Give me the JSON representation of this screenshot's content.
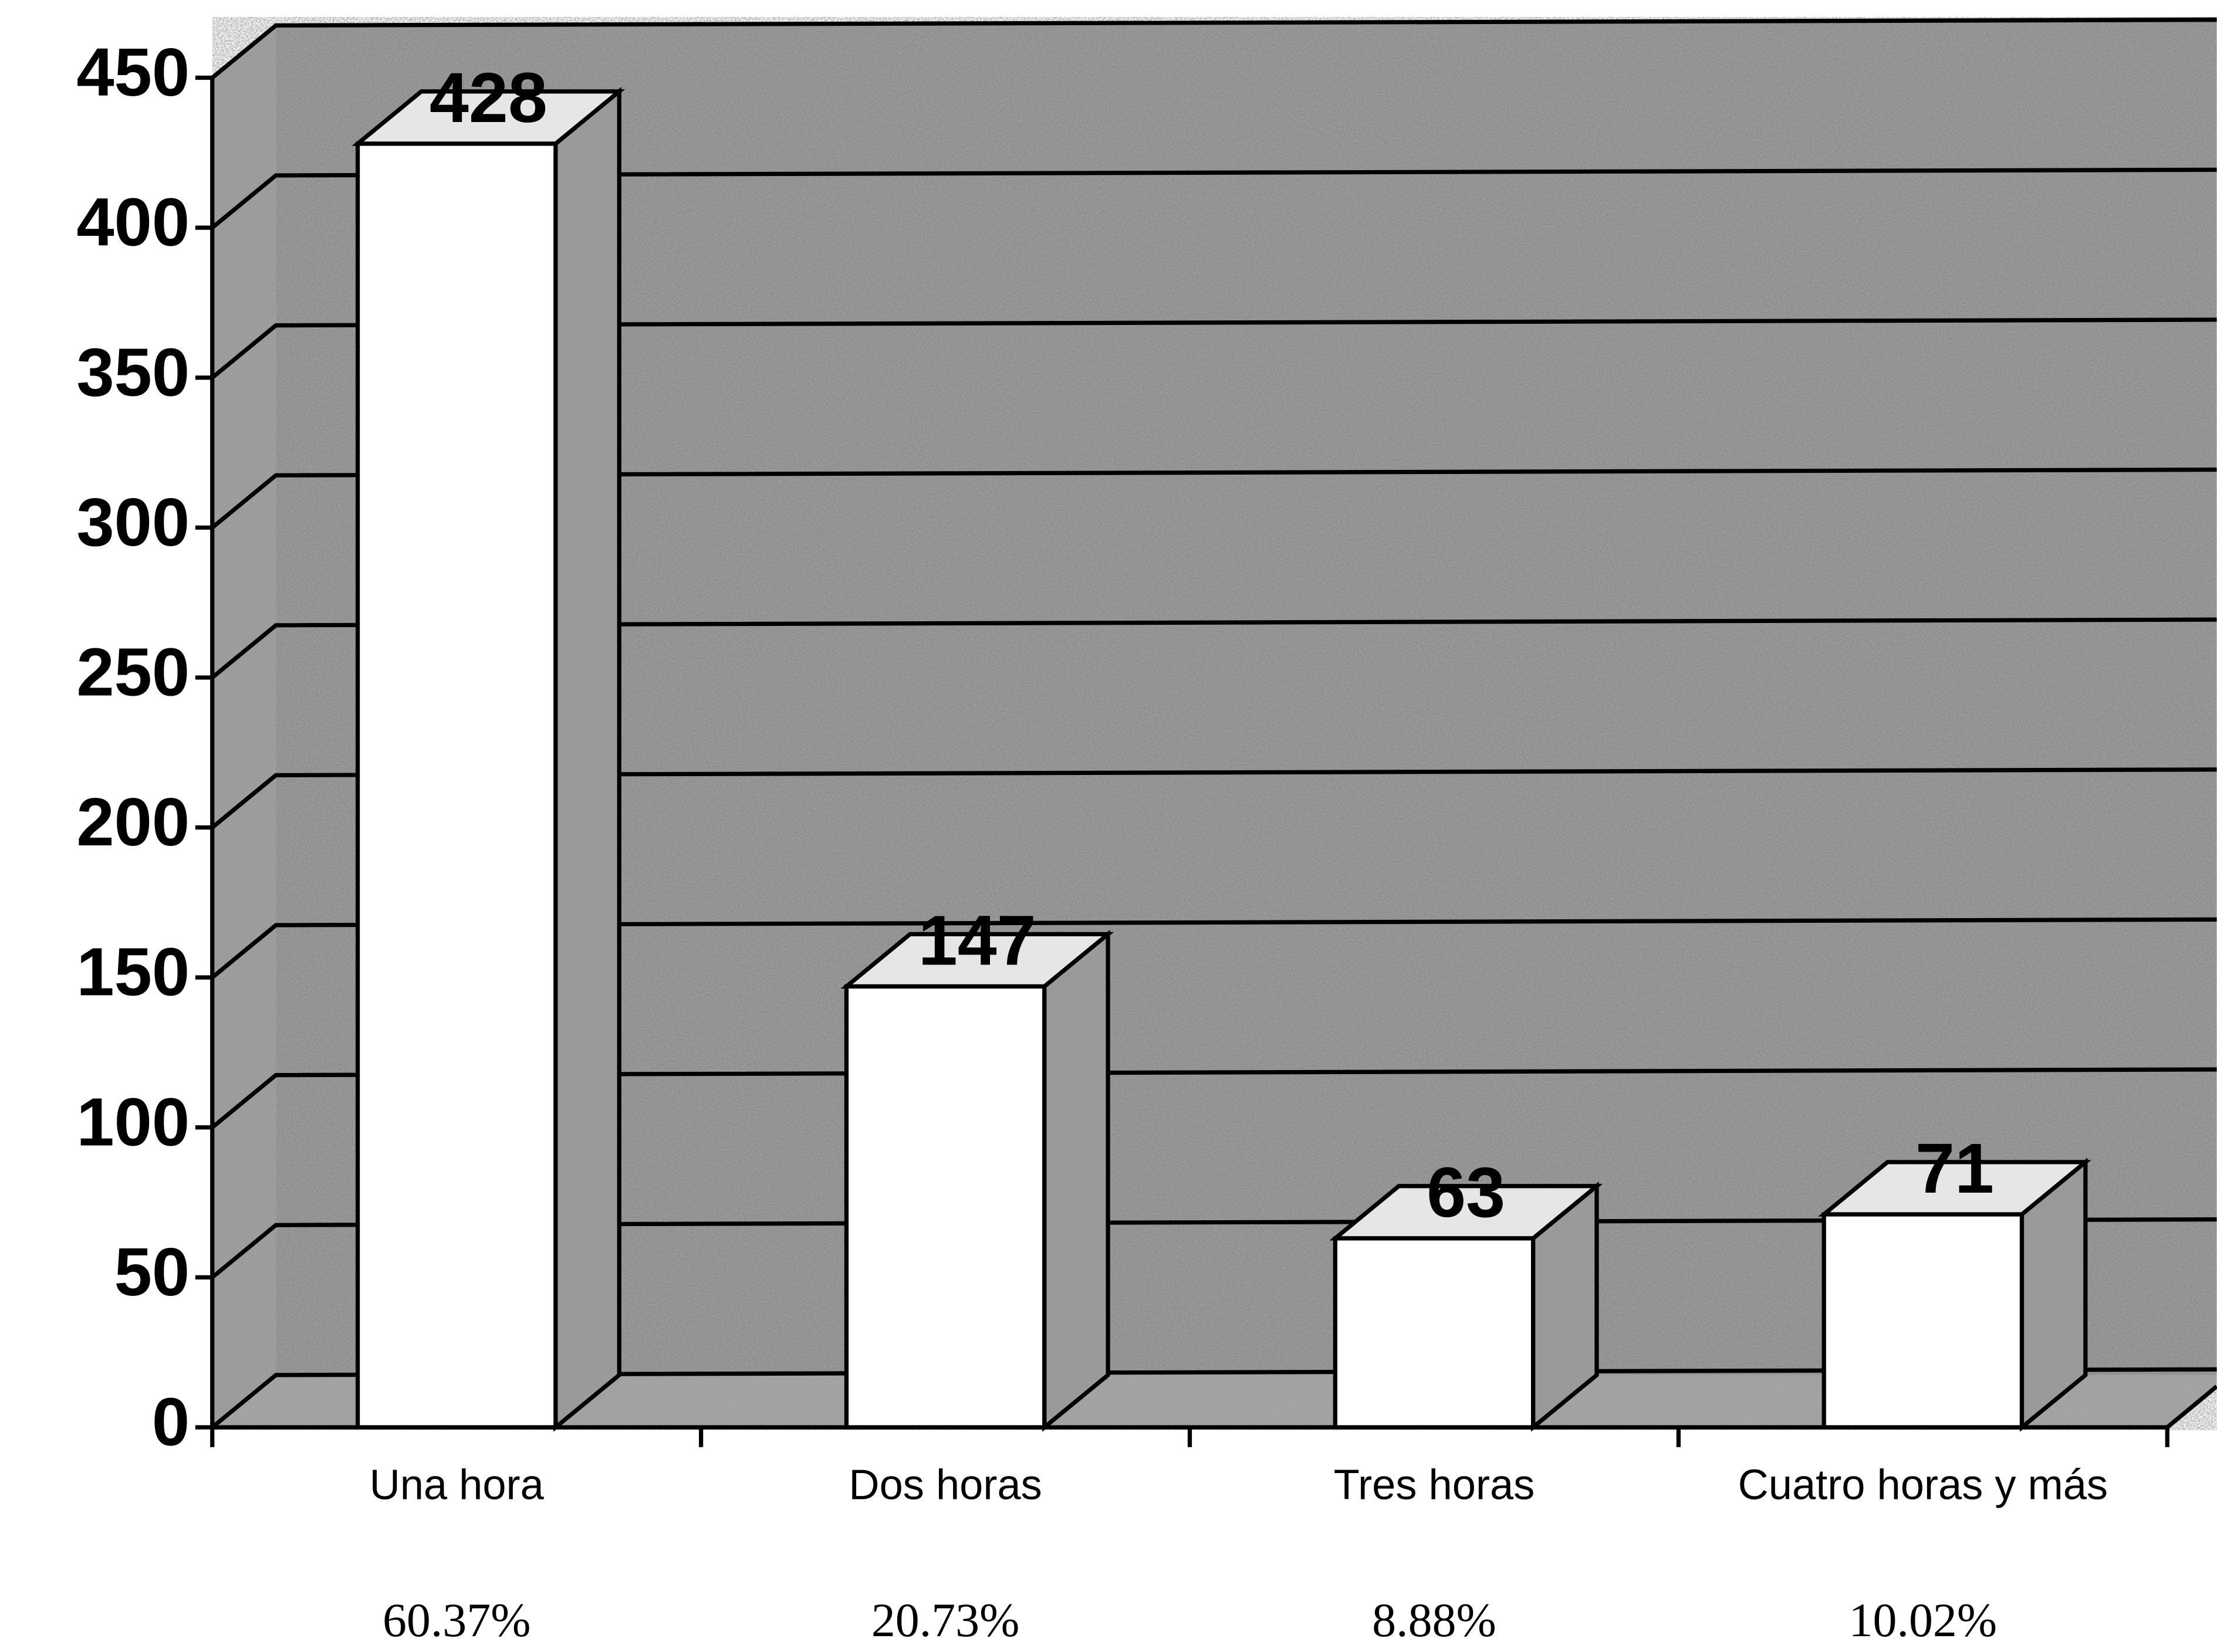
{
  "chart_data": {
    "type": "bar3d",
    "categories": [
      "Una hora",
      "Dos horas",
      "Tres horas",
      "Cuatro horas y más"
    ],
    "values": [
      428,
      147,
      63,
      71
    ],
    "percent_labels": [
      "60.37%",
      "20.73%",
      "8.88%",
      "10.02%"
    ],
    "color": "#ffffff",
    "ylim": [
      0,
      450
    ],
    "yticks": [
      0,
      50,
      100,
      150,
      200,
      250,
      300,
      350,
      400,
      450
    ],
    "grid": true
  }
}
